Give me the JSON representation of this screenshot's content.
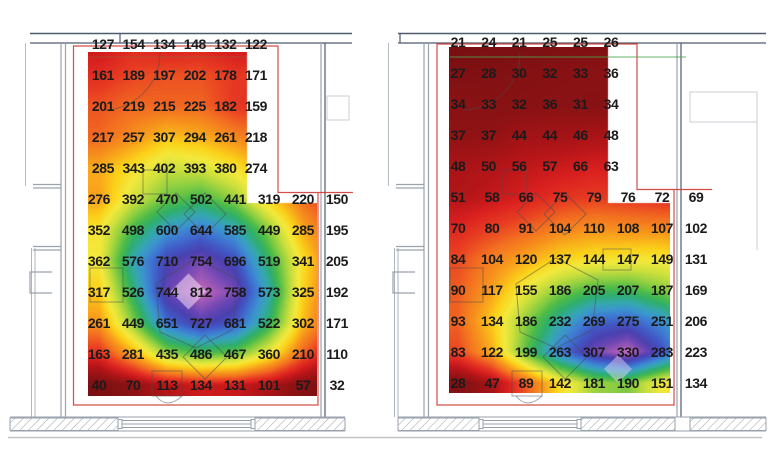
{
  "figure": {
    "description": "Two false-colour measurement heatmaps on an architectural floor plan"
  },
  "chart_data": [
    {
      "type": "heatmap",
      "panel": "left",
      "min": 32,
      "max": 812,
      "rows": [
        [
          127,
          154,
          134,
          148,
          132,
          122
        ],
        [
          161,
          189,
          197,
          202,
          178,
          171
        ],
        [
          201,
          219,
          215,
          225,
          182,
          159
        ],
        [
          217,
          257,
          307,
          294,
          261,
          218
        ],
        [
          285,
          343,
          402,
          393,
          380,
          274
        ],
        [
          276,
          392,
          470,
          502,
          441,
          319,
          220,
          150
        ],
        [
          352,
          498,
          600,
          644,
          585,
          449,
          285,
          195
        ],
        [
          362,
          576,
          710,
          754,
          696,
          519,
          341,
          205
        ],
        [
          317,
          526,
          744,
          812,
          758,
          573,
          325,
          192
        ],
        [
          261,
          449,
          651,
          727,
          681,
          522,
          302,
          171
        ],
        [
          163,
          281,
          435,
          486,
          467,
          360,
          210,
          110
        ],
        [
          40,
          70,
          113,
          134,
          131,
          101,
          57,
          32
        ]
      ]
    },
    {
      "type": "heatmap",
      "panel": "right",
      "min": 21,
      "max": 330,
      "rows": [
        [
          21,
          24,
          21,
          25,
          25,
          26
        ],
        [
          27,
          28,
          30,
          32,
          33,
          36
        ],
        [
          34,
          33,
          32,
          36,
          31,
          34
        ],
        [
          37,
          37,
          44,
          44,
          46,
          48
        ],
        [
          48,
          50,
          56,
          57,
          66,
          63
        ],
        [
          51,
          58,
          66,
          75,
          79,
          76,
          72,
          69
        ],
        [
          70,
          80,
          91,
          104,
          110,
          108,
          107,
          102
        ],
        [
          84,
          104,
          120,
          137,
          144,
          147,
          149,
          131
        ],
        [
          90,
          117,
          155,
          186,
          205,
          207,
          187,
          169
        ],
        [
          93,
          134,
          186,
          232,
          269,
          275,
          251,
          206
        ],
        [
          83,
          122,
          199,
          263,
          307,
          330,
          283,
          223
        ],
        [
          28,
          47,
          89,
          142,
          181,
          190,
          151,
          134
        ]
      ]
    }
  ],
  "colors": {
    "background": "#ffffff",
    "value_text": "#1b1b1b",
    "wall_dark": "#4e5a70",
    "wall_light": "#9aa2ac",
    "boundary_red": "#cf3a32",
    "guide_green": "#4aa34f",
    "page_line": "#c3c3c3",
    "colormap": [
      [
        0.0,
        "#780f11"
      ],
      [
        0.045,
        "#8c1214"
      ],
      [
        0.1,
        "#b41518"
      ],
      [
        0.145,
        "#d9201f"
      ],
      [
        0.19,
        "#e83d22"
      ],
      [
        0.245,
        "#f37021"
      ],
      [
        0.305,
        "#f89c1b"
      ],
      [
        0.37,
        "#fbd21a"
      ],
      [
        0.42,
        "#f3e93c"
      ],
      [
        0.47,
        "#cfe03c"
      ],
      [
        0.53,
        "#8ecf41"
      ],
      [
        0.585,
        "#4bbb49"
      ],
      [
        0.635,
        "#2fae6e"
      ],
      [
        0.685,
        "#35a8ab"
      ],
      [
        0.73,
        "#3b97cc"
      ],
      [
        0.78,
        "#3f78d2"
      ],
      [
        0.83,
        "#4157c4"
      ],
      [
        0.875,
        "#4b41b0"
      ],
      [
        0.915,
        "#6b46b4"
      ],
      [
        0.95,
        "#9254b6"
      ],
      [
        0.975,
        "#ad5fb8"
      ],
      [
        1.0,
        "#c273c2"
      ]
    ]
  }
}
